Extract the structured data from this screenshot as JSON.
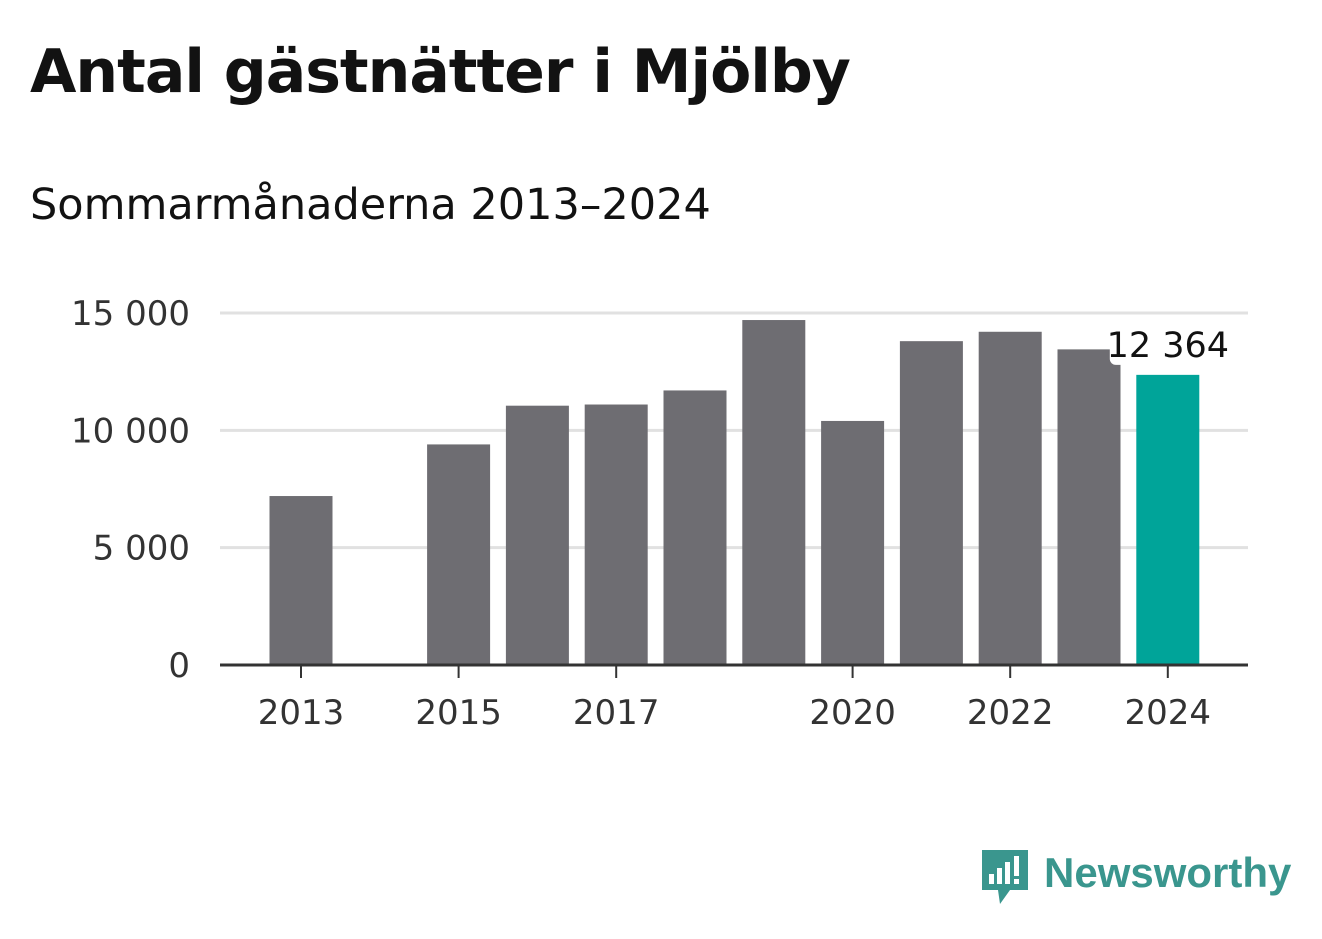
{
  "title": "Antal gästnätter i Mjölby",
  "subtitle": "Sommarmånaderna 2013–2024",
  "brand": {
    "name": "Newsworthy",
    "icon": "newsworthy-logo-icon",
    "color": "#3a968e"
  },
  "colors": {
    "bar": "#6e6d72",
    "highlight": "#00a499",
    "grid": "#e1e1e1",
    "axis": "#333333",
    "text": "#333333"
  },
  "chart_data": {
    "type": "bar",
    "title": "Antal gästnätter i Mjölby",
    "subtitle": "Sommarmånaderna 2013–2024",
    "xlabel": "",
    "ylabel": "",
    "categories": [
      "2013",
      "2014",
      "2015",
      "2016",
      "2017",
      "2018",
      "2019",
      "2020",
      "2021",
      "2022",
      "2023",
      "2024"
    ],
    "values": [
      7200,
      null,
      9400,
      11050,
      11100,
      11700,
      14700,
      10400,
      13800,
      14200,
      13450,
      12364
    ],
    "x_tick_labels": [
      "2013",
      "2015",
      "2017",
      "2020",
      "2022",
      "2024"
    ],
    "y_ticks": [
      0,
      5000,
      10000,
      15000
    ],
    "y_tick_labels": [
      "0",
      "5 000",
      "10 000",
      "15 000"
    ],
    "ylim": [
      0,
      15000
    ],
    "grid": true,
    "highlight_category": "2024",
    "annotations": [
      {
        "category": "2024",
        "text": "12 364"
      }
    ]
  }
}
